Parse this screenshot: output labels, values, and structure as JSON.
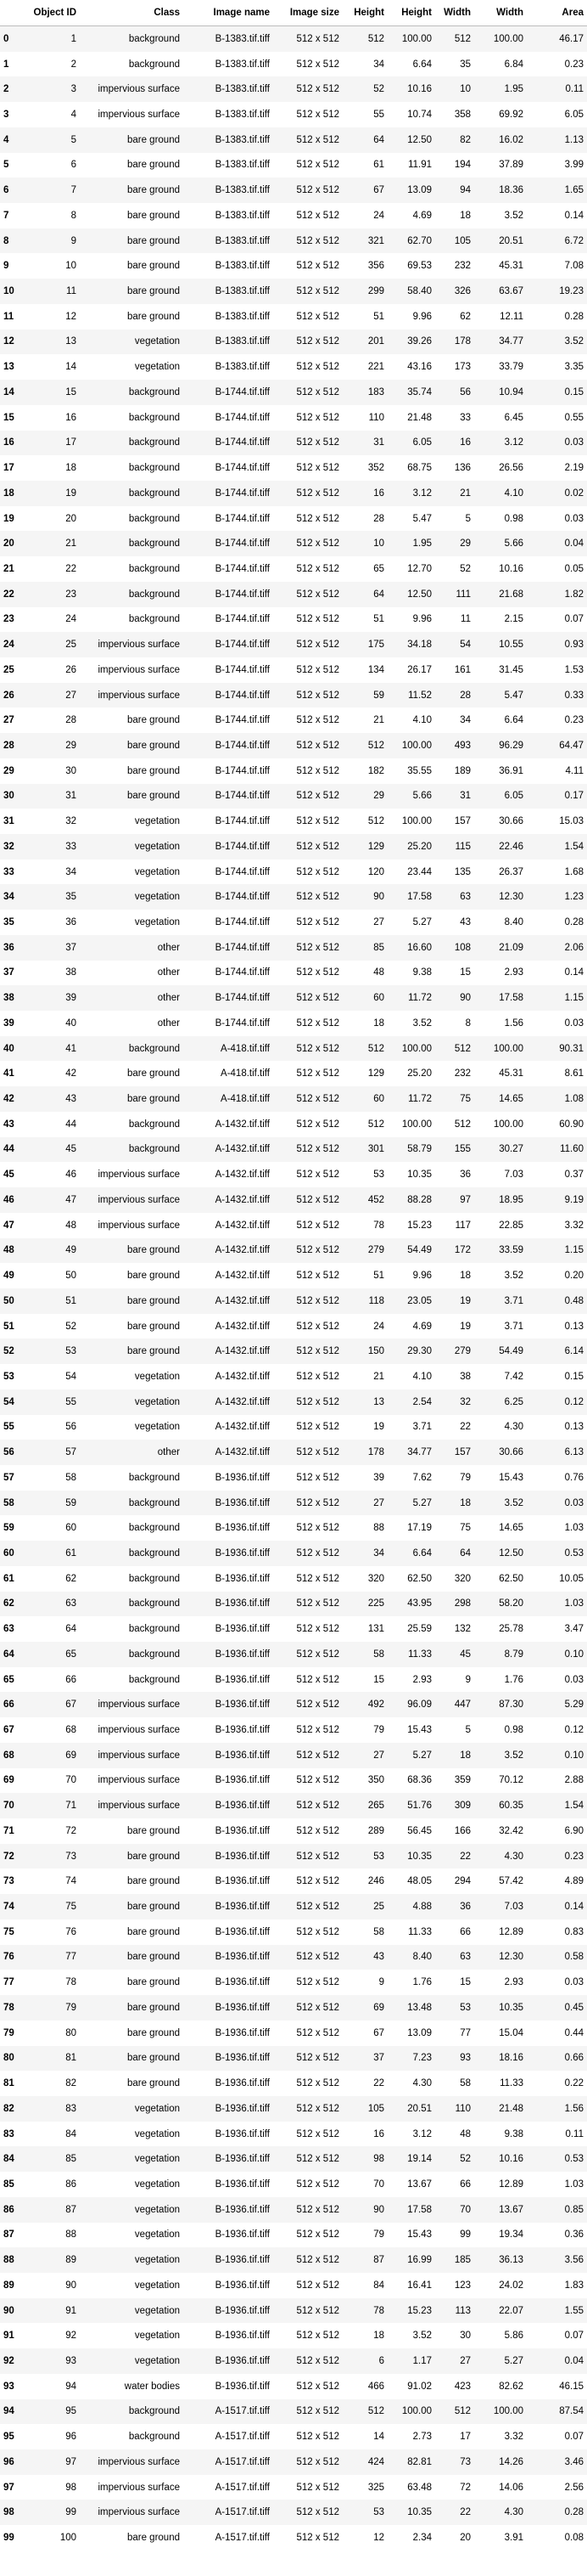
{
  "columns": [
    "",
    "Object ID",
    "Class",
    "Image name",
    "Image size",
    "Height",
    "Height",
    "Width",
    "Width",
    "Area"
  ],
  "rows": [
    [
      "0",
      "1",
      "background",
      "B-1383.tif.tiff",
      "512 x 512",
      "512",
      "100.00",
      "512",
      "100.00",
      "46.17"
    ],
    [
      "1",
      "2",
      "background",
      "B-1383.tif.tiff",
      "512 x 512",
      "34",
      "6.64",
      "35",
      "6.84",
      "0.23"
    ],
    [
      "2",
      "3",
      "impervious surface",
      "B-1383.tif.tiff",
      "512 x 512",
      "52",
      "10.16",
      "10",
      "1.95",
      "0.11"
    ],
    [
      "3",
      "4",
      "impervious surface",
      "B-1383.tif.tiff",
      "512 x 512",
      "55",
      "10.74",
      "358",
      "69.92",
      "6.05"
    ],
    [
      "4",
      "5",
      "bare ground",
      "B-1383.tif.tiff",
      "512 x 512",
      "64",
      "12.50",
      "82",
      "16.02",
      "1.13"
    ],
    [
      "5",
      "6",
      "bare ground",
      "B-1383.tif.tiff",
      "512 x 512",
      "61",
      "11.91",
      "194",
      "37.89",
      "3.99"
    ],
    [
      "6",
      "7",
      "bare ground",
      "B-1383.tif.tiff",
      "512 x 512",
      "67",
      "13.09",
      "94",
      "18.36",
      "1.65"
    ],
    [
      "7",
      "8",
      "bare ground",
      "B-1383.tif.tiff",
      "512 x 512",
      "24",
      "4.69",
      "18",
      "3.52",
      "0.14"
    ],
    [
      "8",
      "9",
      "bare ground",
      "B-1383.tif.tiff",
      "512 x 512",
      "321",
      "62.70",
      "105",
      "20.51",
      "6.72"
    ],
    [
      "9",
      "10",
      "bare ground",
      "B-1383.tif.tiff",
      "512 x 512",
      "356",
      "69.53",
      "232",
      "45.31",
      "7.08"
    ],
    [
      "10",
      "11",
      "bare ground",
      "B-1383.tif.tiff",
      "512 x 512",
      "299",
      "58.40",
      "326",
      "63.67",
      "19.23"
    ],
    [
      "11",
      "12",
      "bare ground",
      "B-1383.tif.tiff",
      "512 x 512",
      "51",
      "9.96",
      "62",
      "12.11",
      "0.28"
    ],
    [
      "12",
      "13",
      "vegetation",
      "B-1383.tif.tiff",
      "512 x 512",
      "201",
      "39.26",
      "178",
      "34.77",
      "3.52"
    ],
    [
      "13",
      "14",
      "vegetation",
      "B-1383.tif.tiff",
      "512 x 512",
      "221",
      "43.16",
      "173",
      "33.79",
      "3.35"
    ],
    [
      "14",
      "15",
      "background",
      "B-1744.tif.tiff",
      "512 x 512",
      "183",
      "35.74",
      "56",
      "10.94",
      "0.15"
    ],
    [
      "15",
      "16",
      "background",
      "B-1744.tif.tiff",
      "512 x 512",
      "110",
      "21.48",
      "33",
      "6.45",
      "0.55"
    ],
    [
      "16",
      "17",
      "background",
      "B-1744.tif.tiff",
      "512 x 512",
      "31",
      "6.05",
      "16",
      "3.12",
      "0.03"
    ],
    [
      "17",
      "18",
      "background",
      "B-1744.tif.tiff",
      "512 x 512",
      "352",
      "68.75",
      "136",
      "26.56",
      "2.19"
    ],
    [
      "18",
      "19",
      "background",
      "B-1744.tif.tiff",
      "512 x 512",
      "16",
      "3.12",
      "21",
      "4.10",
      "0.02"
    ],
    [
      "19",
      "20",
      "background",
      "B-1744.tif.tiff",
      "512 x 512",
      "28",
      "5.47",
      "5",
      "0.98",
      "0.03"
    ],
    [
      "20",
      "21",
      "background",
      "B-1744.tif.tiff",
      "512 x 512",
      "10",
      "1.95",
      "29",
      "5.66",
      "0.04"
    ],
    [
      "21",
      "22",
      "background",
      "B-1744.tif.tiff",
      "512 x 512",
      "65",
      "12.70",
      "52",
      "10.16",
      "0.05"
    ],
    [
      "22",
      "23",
      "background",
      "B-1744.tif.tiff",
      "512 x 512",
      "64",
      "12.50",
      "111",
      "21.68",
      "1.82"
    ],
    [
      "23",
      "24",
      "background",
      "B-1744.tif.tiff",
      "512 x 512",
      "51",
      "9.96",
      "11",
      "2.15",
      "0.07"
    ],
    [
      "24",
      "25",
      "impervious surface",
      "B-1744.tif.tiff",
      "512 x 512",
      "175",
      "34.18",
      "54",
      "10.55",
      "0.93"
    ],
    [
      "25",
      "26",
      "impervious surface",
      "B-1744.tif.tiff",
      "512 x 512",
      "134",
      "26.17",
      "161",
      "31.45",
      "1.53"
    ],
    [
      "26",
      "27",
      "impervious surface",
      "B-1744.tif.tiff",
      "512 x 512",
      "59",
      "11.52",
      "28",
      "5.47",
      "0.33"
    ],
    [
      "27",
      "28",
      "bare ground",
      "B-1744.tif.tiff",
      "512 x 512",
      "21",
      "4.10",
      "34",
      "6.64",
      "0.23"
    ],
    [
      "28",
      "29",
      "bare ground",
      "B-1744.tif.tiff",
      "512 x 512",
      "512",
      "100.00",
      "493",
      "96.29",
      "64.47"
    ],
    [
      "29",
      "30",
      "bare ground",
      "B-1744.tif.tiff",
      "512 x 512",
      "182",
      "35.55",
      "189",
      "36.91",
      "4.11"
    ],
    [
      "30",
      "31",
      "bare ground",
      "B-1744.tif.tiff",
      "512 x 512",
      "29",
      "5.66",
      "31",
      "6.05",
      "0.17"
    ],
    [
      "31",
      "32",
      "vegetation",
      "B-1744.tif.tiff",
      "512 x 512",
      "512",
      "100.00",
      "157",
      "30.66",
      "15.03"
    ],
    [
      "32",
      "33",
      "vegetation",
      "B-1744.tif.tiff",
      "512 x 512",
      "129",
      "25.20",
      "115",
      "22.46",
      "1.54"
    ],
    [
      "33",
      "34",
      "vegetation",
      "B-1744.tif.tiff",
      "512 x 512",
      "120",
      "23.44",
      "135",
      "26.37",
      "1.68"
    ],
    [
      "34",
      "35",
      "vegetation",
      "B-1744.tif.tiff",
      "512 x 512",
      "90",
      "17.58",
      "63",
      "12.30",
      "1.23"
    ],
    [
      "35",
      "36",
      "vegetation",
      "B-1744.tif.tiff",
      "512 x 512",
      "27",
      "5.27",
      "43",
      "8.40",
      "0.28"
    ],
    [
      "36",
      "37",
      "other",
      "B-1744.tif.tiff",
      "512 x 512",
      "85",
      "16.60",
      "108",
      "21.09",
      "2.06"
    ],
    [
      "37",
      "38",
      "other",
      "B-1744.tif.tiff",
      "512 x 512",
      "48",
      "9.38",
      "15",
      "2.93",
      "0.14"
    ],
    [
      "38",
      "39",
      "other",
      "B-1744.tif.tiff",
      "512 x 512",
      "60",
      "11.72",
      "90",
      "17.58",
      "1.15"
    ],
    [
      "39",
      "40",
      "other",
      "B-1744.tif.tiff",
      "512 x 512",
      "18",
      "3.52",
      "8",
      "1.56",
      "0.03"
    ],
    [
      "40",
      "41",
      "background",
      "A-418.tif.tiff",
      "512 x 512",
      "512",
      "100.00",
      "512",
      "100.00",
      "90.31"
    ],
    [
      "41",
      "42",
      "bare ground",
      "A-418.tif.tiff",
      "512 x 512",
      "129",
      "25.20",
      "232",
      "45.31",
      "8.61"
    ],
    [
      "42",
      "43",
      "bare ground",
      "A-418.tif.tiff",
      "512 x 512",
      "60",
      "11.72",
      "75",
      "14.65",
      "1.08"
    ],
    [
      "43",
      "44",
      "background",
      "A-1432.tif.tiff",
      "512 x 512",
      "512",
      "100.00",
      "512",
      "100.00",
      "60.90"
    ],
    [
      "44",
      "45",
      "background",
      "A-1432.tif.tiff",
      "512 x 512",
      "301",
      "58.79",
      "155",
      "30.27",
      "11.60"
    ],
    [
      "45",
      "46",
      "impervious surface",
      "A-1432.tif.tiff",
      "512 x 512",
      "53",
      "10.35",
      "36",
      "7.03",
      "0.37"
    ],
    [
      "46",
      "47",
      "impervious surface",
      "A-1432.tif.tiff",
      "512 x 512",
      "452",
      "88.28",
      "97",
      "18.95",
      "9.19"
    ],
    [
      "47",
      "48",
      "impervious surface",
      "A-1432.tif.tiff",
      "512 x 512",
      "78",
      "15.23",
      "117",
      "22.85",
      "3.32"
    ],
    [
      "48",
      "49",
      "bare ground",
      "A-1432.tif.tiff",
      "512 x 512",
      "279",
      "54.49",
      "172",
      "33.59",
      "1.15"
    ],
    [
      "49",
      "50",
      "bare ground",
      "A-1432.tif.tiff",
      "512 x 512",
      "51",
      "9.96",
      "18",
      "3.52",
      "0.20"
    ],
    [
      "50",
      "51",
      "bare ground",
      "A-1432.tif.tiff",
      "512 x 512",
      "118",
      "23.05",
      "19",
      "3.71",
      "0.48"
    ],
    [
      "51",
      "52",
      "bare ground",
      "A-1432.tif.tiff",
      "512 x 512",
      "24",
      "4.69",
      "19",
      "3.71",
      "0.13"
    ],
    [
      "52",
      "53",
      "bare ground",
      "A-1432.tif.tiff",
      "512 x 512",
      "150",
      "29.30",
      "279",
      "54.49",
      "6.14"
    ],
    [
      "53",
      "54",
      "vegetation",
      "A-1432.tif.tiff",
      "512 x 512",
      "21",
      "4.10",
      "38",
      "7.42",
      "0.15"
    ],
    [
      "54",
      "55",
      "vegetation",
      "A-1432.tif.tiff",
      "512 x 512",
      "13",
      "2.54",
      "32",
      "6.25",
      "0.12"
    ],
    [
      "55",
      "56",
      "vegetation",
      "A-1432.tif.tiff",
      "512 x 512",
      "19",
      "3.71",
      "22",
      "4.30",
      "0.13"
    ],
    [
      "56",
      "57",
      "other",
      "A-1432.tif.tiff",
      "512 x 512",
      "178",
      "34.77",
      "157",
      "30.66",
      "6.13"
    ],
    [
      "57",
      "58",
      "background",
      "B-1936.tif.tiff",
      "512 x 512",
      "39",
      "7.62",
      "79",
      "15.43",
      "0.76"
    ],
    [
      "58",
      "59",
      "background",
      "B-1936.tif.tiff",
      "512 x 512",
      "27",
      "5.27",
      "18",
      "3.52",
      "0.03"
    ],
    [
      "59",
      "60",
      "background",
      "B-1936.tif.tiff",
      "512 x 512",
      "88",
      "17.19",
      "75",
      "14.65",
      "1.03"
    ],
    [
      "60",
      "61",
      "background",
      "B-1936.tif.tiff",
      "512 x 512",
      "34",
      "6.64",
      "64",
      "12.50",
      "0.53"
    ],
    [
      "61",
      "62",
      "background",
      "B-1936.tif.tiff",
      "512 x 512",
      "320",
      "62.50",
      "320",
      "62.50",
      "10.05"
    ],
    [
      "62",
      "63",
      "background",
      "B-1936.tif.tiff",
      "512 x 512",
      "225",
      "43.95",
      "298",
      "58.20",
      "1.03"
    ],
    [
      "63",
      "64",
      "background",
      "B-1936.tif.tiff",
      "512 x 512",
      "131",
      "25.59",
      "132",
      "25.78",
      "3.47"
    ],
    [
      "64",
      "65",
      "background",
      "B-1936.tif.tiff",
      "512 x 512",
      "58",
      "11.33",
      "45",
      "8.79",
      "0.10"
    ],
    [
      "65",
      "66",
      "background",
      "B-1936.tif.tiff",
      "512 x 512",
      "15",
      "2.93",
      "9",
      "1.76",
      "0.03"
    ],
    [
      "66",
      "67",
      "impervious surface",
      "B-1936.tif.tiff",
      "512 x 512",
      "492",
      "96.09",
      "447",
      "87.30",
      "5.29"
    ],
    [
      "67",
      "68",
      "impervious surface",
      "B-1936.tif.tiff",
      "512 x 512",
      "79",
      "15.43",
      "5",
      "0.98",
      "0.12"
    ],
    [
      "68",
      "69",
      "impervious surface",
      "B-1936.tif.tiff",
      "512 x 512",
      "27",
      "5.27",
      "18",
      "3.52",
      "0.10"
    ],
    [
      "69",
      "70",
      "impervious surface",
      "B-1936.tif.tiff",
      "512 x 512",
      "350",
      "68.36",
      "359",
      "70.12",
      "2.88"
    ],
    [
      "70",
      "71",
      "impervious surface",
      "B-1936.tif.tiff",
      "512 x 512",
      "265",
      "51.76",
      "309",
      "60.35",
      "1.54"
    ],
    [
      "71",
      "72",
      "bare ground",
      "B-1936.tif.tiff",
      "512 x 512",
      "289",
      "56.45",
      "166",
      "32.42",
      "6.90"
    ],
    [
      "72",
      "73",
      "bare ground",
      "B-1936.tif.tiff",
      "512 x 512",
      "53",
      "10.35",
      "22",
      "4.30",
      "0.23"
    ],
    [
      "73",
      "74",
      "bare ground",
      "B-1936.tif.tiff",
      "512 x 512",
      "246",
      "48.05",
      "294",
      "57.42",
      "4.89"
    ],
    [
      "74",
      "75",
      "bare ground",
      "B-1936.tif.tiff",
      "512 x 512",
      "25",
      "4.88",
      "36",
      "7.03",
      "0.14"
    ],
    [
      "75",
      "76",
      "bare ground",
      "B-1936.tif.tiff",
      "512 x 512",
      "58",
      "11.33",
      "66",
      "12.89",
      "0.83"
    ],
    [
      "76",
      "77",
      "bare ground",
      "B-1936.tif.tiff",
      "512 x 512",
      "43",
      "8.40",
      "63",
      "12.30",
      "0.58"
    ],
    [
      "77",
      "78",
      "bare ground",
      "B-1936.tif.tiff",
      "512 x 512",
      "9",
      "1.76",
      "15",
      "2.93",
      "0.03"
    ],
    [
      "78",
      "79",
      "bare ground",
      "B-1936.tif.tiff",
      "512 x 512",
      "69",
      "13.48",
      "53",
      "10.35",
      "0.45"
    ],
    [
      "79",
      "80",
      "bare ground",
      "B-1936.tif.tiff",
      "512 x 512",
      "67",
      "13.09",
      "77",
      "15.04",
      "0.44"
    ],
    [
      "80",
      "81",
      "bare ground",
      "B-1936.tif.tiff",
      "512 x 512",
      "37",
      "7.23",
      "93",
      "18.16",
      "0.66"
    ],
    [
      "81",
      "82",
      "bare ground",
      "B-1936.tif.tiff",
      "512 x 512",
      "22",
      "4.30",
      "58",
      "11.33",
      "0.22"
    ],
    [
      "82",
      "83",
      "vegetation",
      "B-1936.tif.tiff",
      "512 x 512",
      "105",
      "20.51",
      "110",
      "21.48",
      "1.56"
    ],
    [
      "83",
      "84",
      "vegetation",
      "B-1936.tif.tiff",
      "512 x 512",
      "16",
      "3.12",
      "48",
      "9.38",
      "0.11"
    ],
    [
      "84",
      "85",
      "vegetation",
      "B-1936.tif.tiff",
      "512 x 512",
      "98",
      "19.14",
      "52",
      "10.16",
      "0.53"
    ],
    [
      "85",
      "86",
      "vegetation",
      "B-1936.tif.tiff",
      "512 x 512",
      "70",
      "13.67",
      "66",
      "12.89",
      "1.03"
    ],
    [
      "86",
      "87",
      "vegetation",
      "B-1936.tif.tiff",
      "512 x 512",
      "90",
      "17.58",
      "70",
      "13.67",
      "0.85"
    ],
    [
      "87",
      "88",
      "vegetation",
      "B-1936.tif.tiff",
      "512 x 512",
      "79",
      "15.43",
      "99",
      "19.34",
      "0.36"
    ],
    [
      "88",
      "89",
      "vegetation",
      "B-1936.tif.tiff",
      "512 x 512",
      "87",
      "16.99",
      "185",
      "36.13",
      "3.56"
    ],
    [
      "89",
      "90",
      "vegetation",
      "B-1936.tif.tiff",
      "512 x 512",
      "84",
      "16.41",
      "123",
      "24.02",
      "1.83"
    ],
    [
      "90",
      "91",
      "vegetation",
      "B-1936.tif.tiff",
      "512 x 512",
      "78",
      "15.23",
      "113",
      "22.07",
      "1.55"
    ],
    [
      "91",
      "92",
      "vegetation",
      "B-1936.tif.tiff",
      "512 x 512",
      "18",
      "3.52",
      "30",
      "5.86",
      "0.07"
    ],
    [
      "92",
      "93",
      "vegetation",
      "B-1936.tif.tiff",
      "512 x 512",
      "6",
      "1.17",
      "27",
      "5.27",
      "0.04"
    ],
    [
      "93",
      "94",
      "water bodies",
      "B-1936.tif.tiff",
      "512 x 512",
      "466",
      "91.02",
      "423",
      "82.62",
      "46.15"
    ],
    [
      "94",
      "95",
      "background",
      "A-1517.tif.tiff",
      "512 x 512",
      "512",
      "100.00",
      "512",
      "100.00",
      "87.54"
    ],
    [
      "95",
      "96",
      "background",
      "A-1517.tif.tiff",
      "512 x 512",
      "14",
      "2.73",
      "17",
      "3.32",
      "0.07"
    ],
    [
      "96",
      "97",
      "impervious surface",
      "A-1517.tif.tiff",
      "512 x 512",
      "424",
      "82.81",
      "73",
      "14.26",
      "3.46"
    ],
    [
      "97",
      "98",
      "impervious surface",
      "A-1517.tif.tiff",
      "512 x 512",
      "325",
      "63.48",
      "72",
      "14.06",
      "2.56"
    ],
    [
      "98",
      "99",
      "impervious surface",
      "A-1517.tif.tiff",
      "512 x 512",
      "53",
      "10.35",
      "22",
      "4.30",
      "0.28"
    ],
    [
      "99",
      "100",
      "bare ground",
      "A-1517.tif.tiff",
      "512 x 512",
      "12",
      "2.34",
      "20",
      "3.91",
      "0.08"
    ]
  ]
}
